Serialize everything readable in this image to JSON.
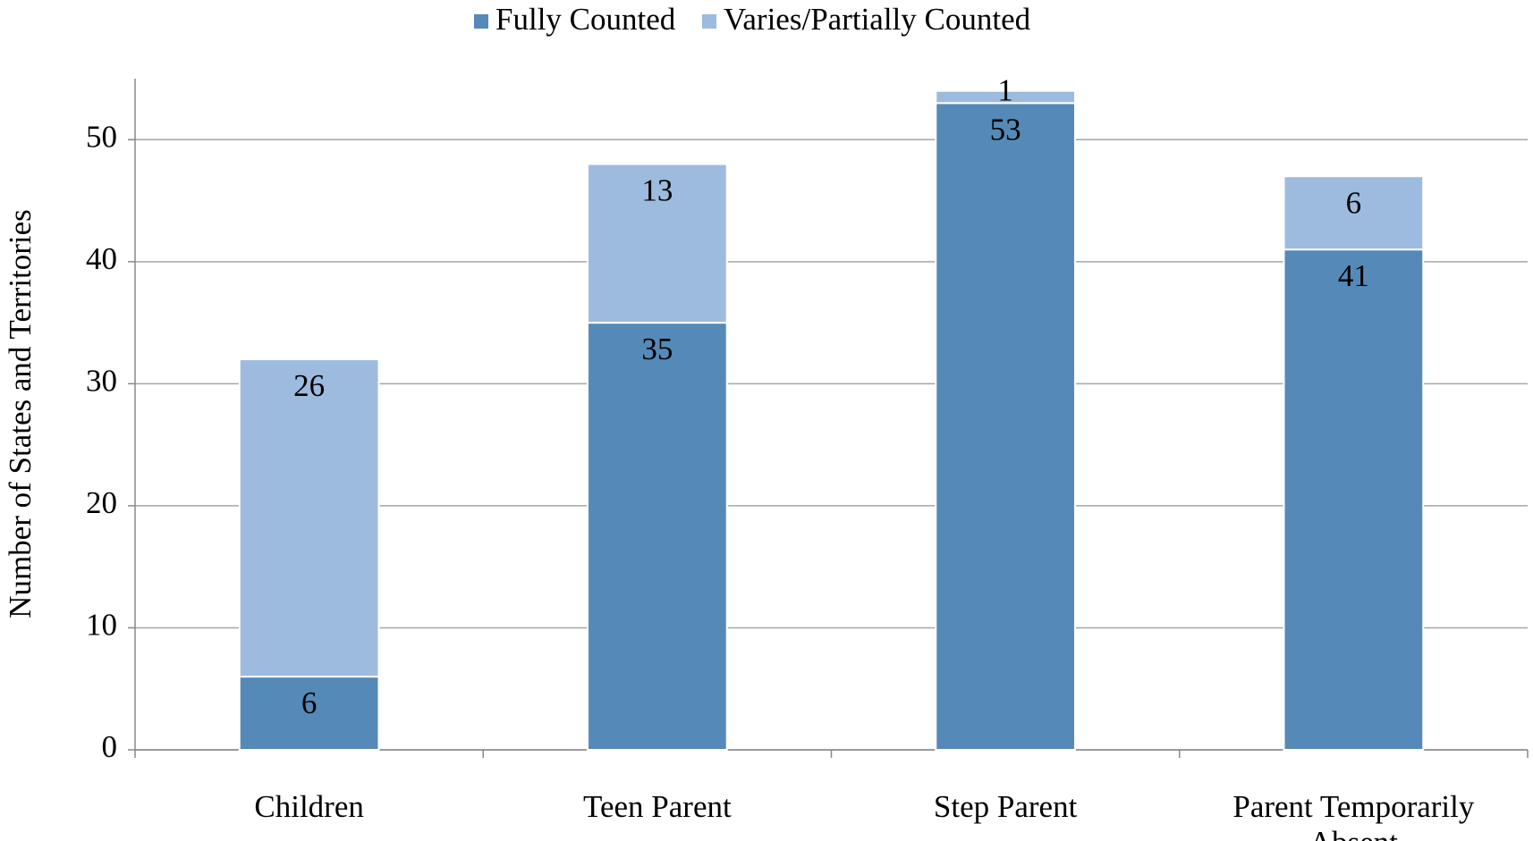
{
  "chart_data": {
    "type": "stacked_bar",
    "categories": [
      "Children",
      "Teen Parent",
      "Step Parent",
      "Parent Temporarily Absent"
    ],
    "series": [
      {
        "name": "Fully Counted",
        "color": "#5589b8",
        "values": [
          6,
          35,
          53,
          41
        ]
      },
      {
        "name": "Varies/Partially Counted",
        "color": "#9dbbde",
        "values": [
          26,
          13,
          1,
          6
        ]
      }
    ],
    "y_label": "Number of States and Territories",
    "ylim": [
      0,
      55
    ],
    "yticks": [
      0,
      10,
      20,
      30,
      40,
      50
    ],
    "grid": true,
    "legend": "top"
  }
}
